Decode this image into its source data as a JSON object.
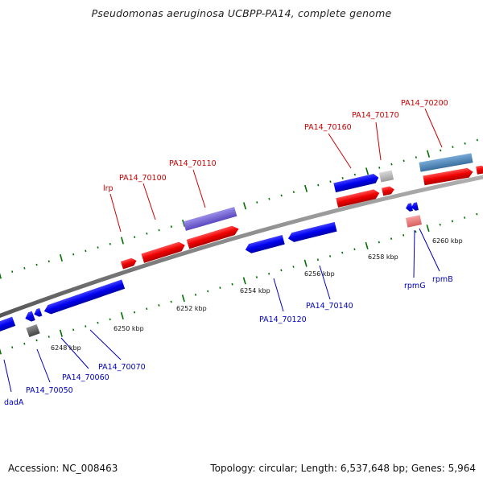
{
  "title": "Pseudomonas aeruginosa UCBPP-PA14, complete genome",
  "footer": {
    "accession": "Accession: NC_008463",
    "topology": "Topology: circular; Length: 6,537,648 bp; Genes: 5,964"
  },
  "colors": {
    "forward": "#e00000",
    "reverse": "#0000ee",
    "forward_label": "#cc0000",
    "reverse_label": "#0000bb",
    "backbone": "#8c8c8c",
    "tick": "#007000"
  },
  "scale_labels": [
    "6248 kbp",
    "6250 kbp",
    "6252 kbp",
    "6254 kbp",
    "6256 kbp",
    "6258 kbp",
    "6260 kbp"
  ],
  "gene_labels": {
    "top": [
      "lrp",
      "PA14_70100",
      "PA14_70110",
      "PA14_70160",
      "PA14_70170",
      "PA14_70200"
    ],
    "bottom": [
      "dadA",
      "PA14_70050",
      "PA14_70060",
      "PA14_70070",
      "PA14_70120",
      "PA14_70140",
      "rpmG",
      "rpmB"
    ]
  }
}
